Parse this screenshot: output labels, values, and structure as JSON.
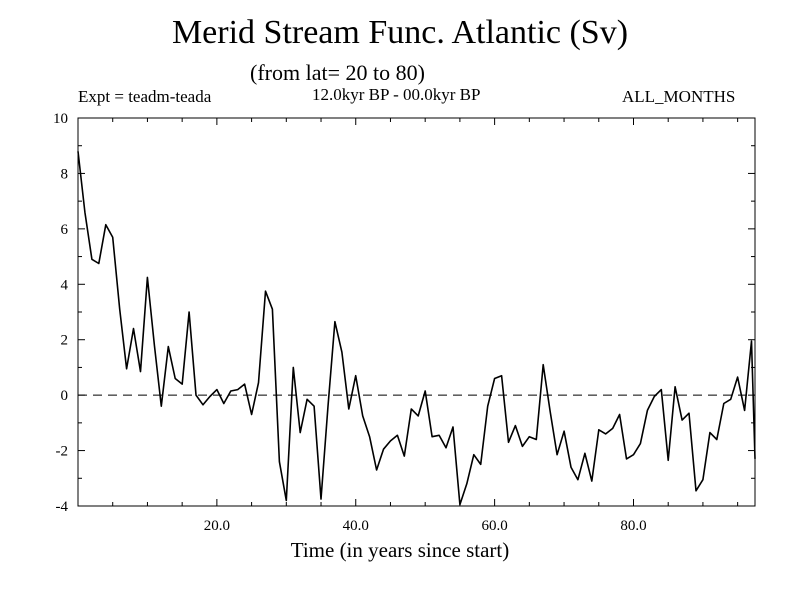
{
  "chart_data": {
    "type": "line",
    "title": "Merid Stream Func. Atlantic (Sv)",
    "subtitle": "(from lat= 20 to 80)",
    "annotations": {
      "left": "Expt = teadm-teada",
      "center": "12.0kyr BP - 00.0kyr BP",
      "right": "ALL_MONTHS"
    },
    "xlabel": "Time (in years since start)",
    "ylabel": "",
    "xlim": [
      0,
      97.5
    ],
    "ylim": [
      -4,
      10
    ],
    "x_ticks": [
      20,
      40,
      60,
      80
    ],
    "x_tick_labels": [
      "20.0",
      "40.0",
      "60.0",
      "80.0"
    ],
    "y_ticks": [
      -4,
      -2,
      0,
      2,
      4,
      6,
      8,
      10
    ],
    "y_tick_labels": [
      "-4",
      "-2",
      "0",
      "2",
      "4",
      "6",
      "8",
      "10"
    ],
    "reference_line": {
      "y": 0,
      "style": "dashed"
    },
    "series": [
      {
        "x": [
          0,
          1,
          2,
          3,
          4,
          5,
          6,
          7,
          8,
          9,
          10,
          11,
          12,
          13,
          14,
          15,
          16,
          17,
          18,
          19,
          20,
          21,
          22,
          23,
          24,
          25,
          26,
          27,
          28,
          29,
          30,
          31,
          32,
          33,
          34,
          35,
          36,
          37,
          38,
          39,
          40,
          41,
          42,
          43,
          44,
          45,
          46,
          47,
          48,
          49,
          50,
          51,
          52,
          53,
          54,
          55,
          56,
          57,
          58,
          59,
          60,
          61,
          62,
          63,
          64,
          65,
          66,
          67,
          68,
          69,
          70,
          71,
          72,
          73,
          74,
          75,
          76,
          77,
          78,
          79,
          80,
          81,
          82,
          83,
          84,
          85,
          86,
          87,
          88,
          89,
          90,
          91,
          92,
          93,
          94,
          95,
          96,
          97,
          97.5
        ],
        "y": [
          8.8,
          6.6,
          4.9,
          4.75,
          6.15,
          5.7,
          3.1,
          0.95,
          2.4,
          0.85,
          4.25,
          1.8,
          -0.4,
          1.75,
          0.6,
          0.4,
          3.0,
          0.0,
          -0.35,
          -0.05,
          0.2,
          -0.3,
          0.15,
          0.2,
          0.4,
          -0.7,
          0.45,
          3.75,
          3.1,
          -2.4,
          -3.8,
          1.0,
          -1.35,
          -0.15,
          -0.4,
          -3.75,
          -0.4,
          2.65,
          1.55,
          -0.5,
          0.7,
          -0.75,
          -1.5,
          -2.7,
          -1.95,
          -1.65,
          -1.45,
          -2.2,
          -0.5,
          -0.75,
          0.15,
          -1.5,
          -1.45,
          -1.9,
          -1.15,
          -3.95,
          -3.2,
          -2.15,
          -2.5,
          -0.4,
          0.6,
          0.7,
          -1.7,
          -1.1,
          -1.85,
          -1.5,
          -1.6,
          1.1,
          -0.6,
          -2.15,
          -1.3,
          -2.6,
          -3.05,
          -2.1,
          -3.1,
          -1.25,
          -1.4,
          -1.2,
          -0.7,
          -2.3,
          -2.15,
          -1.75,
          -0.55,
          -0.05,
          0.2,
          -2.35,
          0.3,
          -0.9,
          -0.65,
          -3.45,
          -3.05,
          -1.35,
          -1.6,
          -0.3,
          -0.15,
          0.65,
          -0.55,
          1.95,
          -2.3
        ]
      }
    ]
  }
}
